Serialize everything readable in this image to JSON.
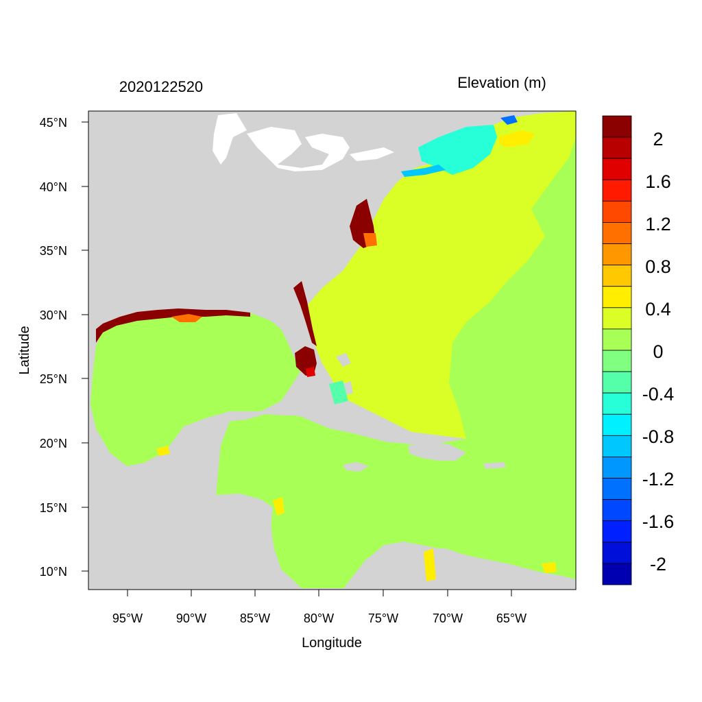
{
  "left_title": "2020122520",
  "right_title": "Elevation (m)",
  "x_axis_title": "Longitude",
  "y_axis_title": "Latitude",
  "lat_ticks": [
    "45°N",
    "40°N",
    "35°N",
    "30°N",
    "25°N",
    "20°N",
    "15°N",
    "10°N"
  ],
  "lon_ticks": [
    "95°W",
    "90°W",
    "85°W",
    "80°W",
    "75°W",
    "70°W",
    "65°W"
  ],
  "colorbar": {
    "labels": [
      "2",
      "1.6",
      "1.2",
      "0.8",
      "0.4",
      "0",
      "-0.4",
      "-0.8",
      "-1.2",
      "-1.6",
      "-2"
    ],
    "colors": [
      "#8b0000",
      "#b80000",
      "#e00000",
      "#ff1a00",
      "#ff4800",
      "#ff7000",
      "#ff9800",
      "#ffc800",
      "#ffee00",
      "#dbff26",
      "#a8ff55",
      "#80ff80",
      "#55ffaa",
      "#26ffd8",
      "#00f0ff",
      "#00c8ff",
      "#0098ff",
      "#0070ff",
      "#0048ff",
      "#0020ff",
      "#0010d8",
      "#0000b0"
    ]
  },
  "map_colors": {
    "land": "#d3d3d3",
    "water": "#ffffff",
    "atlantic_surge": "#d9ff26",
    "gulf_caribbean": "#a8ff55",
    "high_surge": "#8b0000",
    "low_surge": "#00c8ff"
  }
}
